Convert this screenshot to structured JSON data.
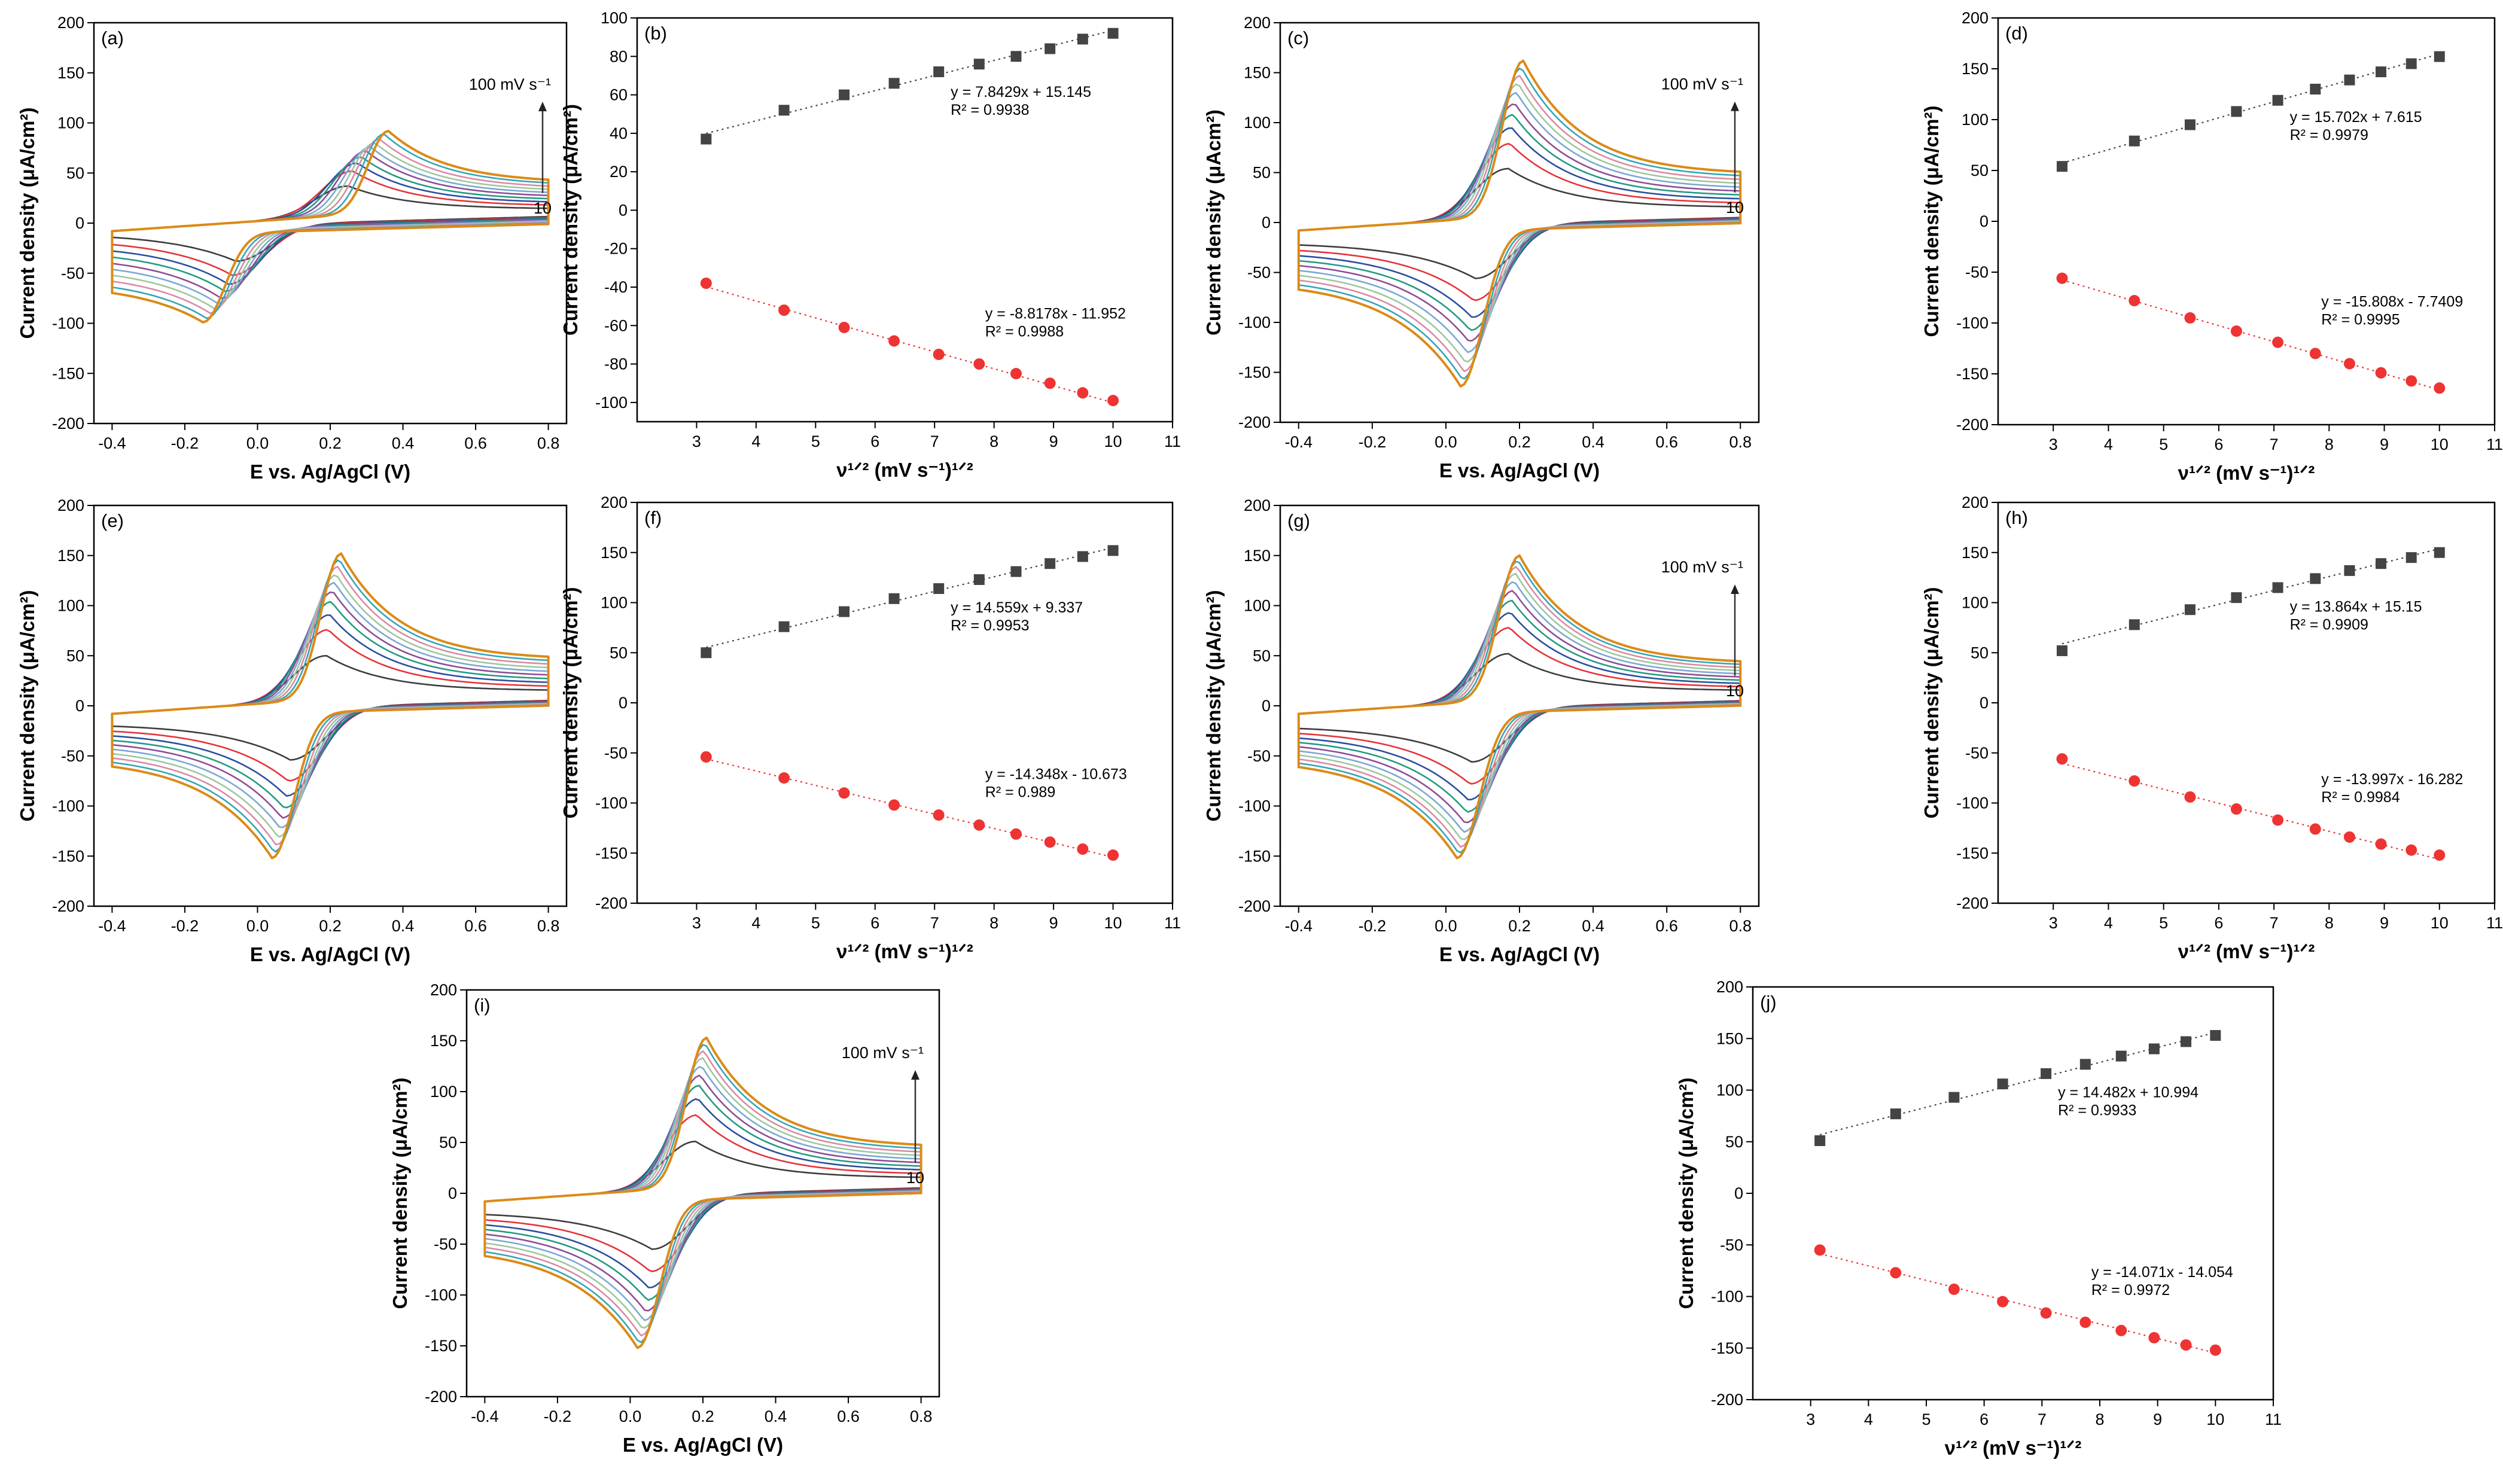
{
  "figure": {
    "panel_count": 10
  },
  "chart_data": [
    {
      "id": "a",
      "type": "line",
      "kind": "cv",
      "label": "(a)",
      "xlabel": "E vs. Ag/AgCl (V)",
      "ylabel": "Current density (μA/cm²)",
      "xlim": [
        -0.45,
        0.85
      ],
      "ylim": [
        -200,
        200
      ],
      "xticks": [
        "-0.4",
        "-0.2",
        "0.0",
        "0.2",
        "0.4",
        "0.6",
        "0.8"
      ],
      "yticks": [
        "-200",
        "-150",
        "-100",
        "-50",
        "0",
        "50",
        "100",
        "150",
        "200"
      ],
      "ann_top": "100 mV s⁻¹",
      "ann_bottom": "10",
      "scan_rates": [
        10,
        20,
        30,
        40,
        50,
        60,
        70,
        80,
        90,
        100
      ],
      "params": {
        "Epa": 0.25,
        "Epa_max": 0.36,
        "Epc": -0.06,
        "Epc_max": -0.15,
        "ipa": [
          37,
          52,
          60,
          66,
          72,
          76,
          80,
          84,
          89,
          92
        ],
        "ipc": [
          -38,
          -52,
          -61,
          -68,
          -75,
          -80,
          -85,
          -90,
          -95,
          -99
        ],
        "end_hi": 14,
        "end_hi_max": 40,
        "end_lo": -10,
        "end_lo_max": -60
      }
    },
    {
      "id": "b",
      "type": "scatter",
      "kind": "fit",
      "label": "(b)",
      "xlabel": "ν¹ᐟ² (mV s⁻¹)¹ᐟ²",
      "ylabel": "Current density (μA/cm²)",
      "xlim": [
        2,
        11
      ],
      "ylim": [
        -110,
        100
      ],
      "xticks": [
        "3",
        "4",
        "5",
        "6",
        "7",
        "8",
        "9",
        "10",
        "11"
      ],
      "yticks": [
        "-100",
        "-80",
        "-60",
        "-40",
        "-20",
        "0",
        "20",
        "40",
        "60",
        "80",
        "100"
      ],
      "x": [
        3.16,
        4.47,
        5.48,
        6.32,
        7.07,
        7.75,
        8.37,
        8.94,
        9.49,
        10.0
      ],
      "series": [
        {
          "name": "anodic",
          "marker": "square",
          "color": "#444444",
          "values": [
            37,
            52,
            60,
            66,
            72,
            76,
            80,
            84,
            89,
            92
          ],
          "fit": [
            7.8429,
            15.145
          ]
        },
        {
          "name": "cathodic",
          "marker": "circle",
          "color": "#ee3333",
          "values": [
            -38,
            -52,
            -61,
            -68,
            -75,
            -80,
            -85,
            -90,
            -95,
            -99
          ],
          "fit": [
            -8.8178,
            -11.952
          ]
        }
      ],
      "eq_anodic": "y = 7.8429x + 15.145",
      "r2_anodic": "R² = 0.9938",
      "eq_cathodic": "y = -8.8178x - 11.952",
      "r2_cathodic": "R² = 0.9988"
    },
    {
      "id": "c",
      "type": "line",
      "kind": "cv",
      "label": "(c)",
      "xlabel": "E vs. Ag/AgCl (V)",
      "ylabel": "Current density (μAcm²)",
      "xlim": [
        -0.45,
        0.85
      ],
      "ylim": [
        -200,
        200
      ],
      "xticks": [
        "-0.4",
        "-0.2",
        "0.0",
        "0.2",
        "0.4",
        "0.6",
        "0.8"
      ],
      "yticks": [
        "-200",
        "-150",
        "-100",
        "-50",
        "0",
        "50",
        "100",
        "150",
        "200"
      ],
      "ann_top": "100 mV s⁻¹",
      "ann_bottom": "10",
      "scan_rates": [
        10,
        20,
        30,
        40,
        50,
        60,
        70,
        80,
        90,
        100
      ],
      "params": {
        "Epa": 0.17,
        "Epa_max": 0.21,
        "Epc": 0.08,
        "Epc_max": 0.04,
        "ipa": [
          54,
          79,
          95,
          108,
          119,
          130,
          139,
          147,
          155,
          162
        ],
        "ipc": [
          -56,
          -78,
          -95,
          -108,
          -119,
          -130,
          -140,
          -149,
          -157,
          -164
        ],
        "end_hi": 15,
        "end_hi_max": 48,
        "end_lo": -20,
        "end_lo_max": -58
      }
    },
    {
      "id": "d",
      "type": "scatter",
      "kind": "fit",
      "label": "(d)",
      "xlabel": "ν¹ᐟ² (mV s⁻¹)¹ᐟ²",
      "ylabel": "Current density (μA/cm²)",
      "xlim": [
        2,
        11
      ],
      "ylim": [
        -200,
        200
      ],
      "xticks": [
        "3",
        "4",
        "5",
        "6",
        "7",
        "8",
        "9",
        "10",
        "11"
      ],
      "yticks": [
        "-200",
        "-150",
        "-100",
        "-50",
        "0",
        "50",
        "100",
        "150",
        "200"
      ],
      "x": [
        3.16,
        4.47,
        5.48,
        6.32,
        7.07,
        7.75,
        8.37,
        8.94,
        9.49,
        10.0
      ],
      "series": [
        {
          "name": "anodic",
          "marker": "square",
          "color": "#444444",
          "values": [
            54,
            79,
            95,
            108,
            119,
            130,
            139,
            147,
            155,
            162
          ],
          "fit": [
            15.702,
            7.615
          ]
        },
        {
          "name": "cathodic",
          "marker": "circle",
          "color": "#ee3333",
          "values": [
            -56,
            -78,
            -95,
            -108,
            -119,
            -130,
            -140,
            -149,
            -157,
            -164
          ],
          "fit": [
            -15.808,
            -7.7409
          ]
        }
      ],
      "eq_anodic": "y = 15.702x + 7.615",
      "r2_anodic": "R² = 0.9979",
      "eq_cathodic": "y = -15.808x - 7.7409",
      "r2_cathodic": "R² = 0.9995"
    },
    {
      "id": "e",
      "type": "line",
      "kind": "cv",
      "label": "(e)",
      "xlabel": "E vs. Ag/AgCl (V)",
      "ylabel": "Current density (μA/cm²)",
      "xlim": [
        -0.45,
        0.85
      ],
      "ylim": [
        -200,
        200
      ],
      "xticks": [
        "-0.4",
        "-0.2",
        "0.0",
        "0.2",
        "0.4",
        "0.6",
        "0.8"
      ],
      "yticks": [
        "-200",
        "-150",
        "-100",
        "-50",
        "0",
        "50",
        "100",
        "150",
        "200"
      ],
      "ann_top": "",
      "ann_bottom": "",
      "scan_rates": [
        10,
        20,
        30,
        40,
        50,
        60,
        70,
        80,
        90,
        100
      ],
      "params": {
        "Epa": 0.19,
        "Epa_max": 0.23,
        "Epc": 0.09,
        "Epc_max": 0.04,
        "ipa": [
          50,
          76,
          91,
          104,
          114,
          123,
          131,
          139,
          146,
          152
        ],
        "ipc": [
          -54,
          -75,
          -90,
          -102,
          -112,
          -122,
          -131,
          -139,
          -146,
          -152
        ],
        "end_hi": 15,
        "end_hi_max": 46,
        "end_lo": -18,
        "end_lo_max": -52
      }
    },
    {
      "id": "f",
      "type": "scatter",
      "kind": "fit",
      "label": "(f)",
      "xlabel": "ν¹ᐟ² (mV s⁻¹)¹ᐟ²",
      "ylabel": "Current density (μA/cm²)",
      "xlim": [
        2,
        11
      ],
      "ylim": [
        -200,
        200
      ],
      "xticks": [
        "3",
        "4",
        "5",
        "6",
        "7",
        "8",
        "9",
        "10",
        "11"
      ],
      "yticks": [
        "-200",
        "-150",
        "-100",
        "-50",
        "0",
        "50",
        "100",
        "150",
        "200"
      ],
      "x": [
        3.16,
        4.47,
        5.48,
        6.32,
        7.07,
        7.75,
        8.37,
        8.94,
        9.49,
        10.0
      ],
      "series": [
        {
          "name": "anodic",
          "marker": "square",
          "color": "#444444",
          "values": [
            50,
            76,
            91,
            104,
            114,
            123,
            131,
            139,
            146,
            152
          ],
          "fit": [
            14.559,
            9.337
          ]
        },
        {
          "name": "cathodic",
          "marker": "circle",
          "color": "#ee3333",
          "values": [
            -54,
            -75,
            -90,
            -102,
            -112,
            -122,
            -131,
            -139,
            -146,
            -152
          ],
          "fit": [
            -14.348,
            -10.673
          ]
        }
      ],
      "eq_anodic": "y = 14.559x + 9.337",
      "r2_anodic": "R² = 0.9953",
      "eq_cathodic": "y = -14.348x - 10.673",
      "r2_cathodic": "R² = 0.989"
    },
    {
      "id": "g",
      "type": "line",
      "kind": "cv",
      "label": "(g)",
      "xlabel": "E vs. Ag/AgCl (V)",
      "ylabel": "Current density (μA/cm²)",
      "xlim": [
        -0.45,
        0.85
      ],
      "ylim": [
        -200,
        200
      ],
      "xticks": [
        "-0.4",
        "-0.2",
        "0.0",
        "0.2",
        "0.4",
        "0.6",
        "0.8"
      ],
      "yticks": [
        "-200",
        "-150",
        "-100",
        "-50",
        "0",
        "50",
        "100",
        "150",
        "200"
      ],
      "ann_top": "100 mV s⁻¹",
      "ann_bottom": "10",
      "scan_rates": [
        10,
        20,
        30,
        40,
        50,
        60,
        70,
        80,
        90,
        100
      ],
      "params": {
        "Epa": 0.17,
        "Epa_max": 0.2,
        "Epc": 0.07,
        "Epc_max": 0.03,
        "ipa": [
          52,
          78,
          93,
          105,
          115,
          124,
          132,
          139,
          145,
          150
        ],
        "ipc": [
          -56,
          -78,
          -94,
          -106,
          -117,
          -126,
          -134,
          -141,
          -147,
          -152
        ],
        "end_hi": 15,
        "end_hi_max": 42,
        "end_lo": -20,
        "end_lo_max": -52
      }
    },
    {
      "id": "h",
      "type": "scatter",
      "kind": "fit",
      "label": "(h)",
      "xlabel": "ν¹ᐟ² (mV s⁻¹)¹ᐟ²",
      "ylabel": "Current density (μA/cm²)",
      "xlim": [
        2,
        11
      ],
      "ylim": [
        -200,
        200
      ],
      "xticks": [
        "3",
        "4",
        "5",
        "6",
        "7",
        "8",
        "9",
        "10",
        "11"
      ],
      "yticks": [
        "-200",
        "-150",
        "-100",
        "-50",
        "0",
        "50",
        "100",
        "150",
        "200"
      ],
      "x": [
        3.16,
        4.47,
        5.48,
        6.32,
        7.07,
        7.75,
        8.37,
        8.94,
        9.49,
        10.0
      ],
      "series": [
        {
          "name": "anodic",
          "marker": "square",
          "color": "#444444",
          "values": [
            52,
            78,
            93,
            105,
            115,
            124,
            132,
            139,
            145,
            150
          ],
          "fit": [
            13.864,
            15.15
          ]
        },
        {
          "name": "cathodic",
          "marker": "circle",
          "color": "#ee3333",
          "values": [
            -56,
            -78,
            -94,
            -106,
            -117,
            -126,
            -134,
            -141,
            -147,
            -152
          ],
          "fit": [
            -13.997,
            -16.282
          ]
        }
      ],
      "eq_anodic": "y = 13.864x + 15.15",
      "r2_anodic": "R² = 0.9909",
      "eq_cathodic": "y = -13.997x - 16.282",
      "r2_cathodic": "R² = 0.9984"
    },
    {
      "id": "i",
      "type": "line",
      "kind": "cv",
      "label": "(i)",
      "xlabel": "E vs. Ag/AgCl (V)",
      "ylabel": "Current density (μA/cm²)",
      "xlim": [
        -0.45,
        0.85
      ],
      "ylim": [
        -200,
        200
      ],
      "xticks": [
        "-0.4",
        "-0.2",
        "0.0",
        "0.2",
        "0.4",
        "0.6",
        "0.8"
      ],
      "yticks": [
        "-200",
        "-150",
        "-100",
        "-50",
        "0",
        "50",
        "100",
        "150",
        "200"
      ],
      "ann_top": "100 mV s⁻¹",
      "ann_bottom": "10",
      "scan_rates": [
        10,
        20,
        30,
        40,
        50,
        60,
        70,
        80,
        90,
        100
      ],
      "params": {
        "Epa": 0.18,
        "Epa_max": 0.21,
        "Epc": 0.06,
        "Epc_max": 0.02,
        "ipa": [
          51,
          77,
          93,
          106,
          116,
          125,
          133,
          140,
          147,
          153
        ],
        "ipc": [
          -55,
          -77,
          -93,
          -105,
          -116,
          -125,
          -133,
          -140,
          -147,
          -152
        ],
        "end_hi": 15,
        "end_hi_max": 45,
        "end_lo": -18,
        "end_lo_max": -52
      }
    },
    {
      "id": "j",
      "type": "scatter",
      "kind": "fit",
      "label": "(j)",
      "xlabel": "ν¹ᐟ² (mV s⁻¹)¹ᐟ²",
      "ylabel": "Current density (μA/cm²)",
      "xlim": [
        2,
        11
      ],
      "ylim": [
        -200,
        200
      ],
      "xticks": [
        "3",
        "4",
        "5",
        "6",
        "7",
        "8",
        "9",
        "10",
        "11"
      ],
      "yticks": [
        "-200",
        "-150",
        "-100",
        "-50",
        "0",
        "50",
        "100",
        "150",
        "200"
      ],
      "x": [
        3.16,
        4.47,
        5.48,
        6.32,
        7.07,
        7.75,
        8.37,
        8.94,
        9.49,
        10.0
      ],
      "series": [
        {
          "name": "anodic",
          "marker": "square",
          "color": "#444444",
          "values": [
            51,
            77,
            93,
            106,
            116,
            125,
            133,
            140,
            147,
            153
          ],
          "fit": [
            14.482,
            10.994
          ]
        },
        {
          "name": "cathodic",
          "marker": "circle",
          "color": "#ee3333",
          "values": [
            -55,
            -77,
            -93,
            -105,
            -116,
            -125,
            -133,
            -140,
            -147,
            -152
          ],
          "fit": [
            -14.071,
            -14.054
          ]
        }
      ],
      "eq_anodic": "y = 14.482x + 10.994",
      "r2_anodic": "R² = 0.9933",
      "eq_cathodic": "y = -14.071x - 14.054",
      "r2_cathodic": "R² = 0.9972"
    }
  ],
  "curve_colors": [
    "#3d3d3d",
    "#e5343a",
    "#2a4f9e",
    "#249a82",
    "#8e4d95",
    "#7aa8d4",
    "#9dc89d",
    "#d98aa5",
    "#33a6b5",
    "#dc8a17"
  ]
}
